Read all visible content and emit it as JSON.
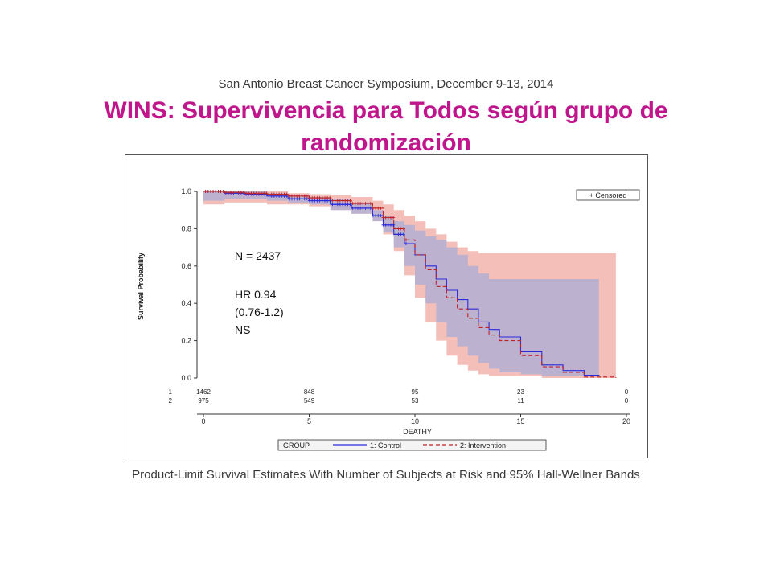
{
  "header": {
    "conference": "San Antonio Breast Cancer Symposium, December 9-13, 2014",
    "title": "WINS: Supervivencia para Todos según grupo de randomización"
  },
  "caption": "Product-Limit Survival Estimates With Number of Subjects at Risk and 95% Hall-Wellner Bands",
  "colors": {
    "control": "#2b2bd9",
    "intervention": "#c02020",
    "control_band": "#9aa9df",
    "intervention_band": "#efa9a0",
    "title": "#c0168c"
  },
  "chart_data": {
    "type": "line",
    "title": "",
    "xlabel": "DEATHY",
    "ylabel": "Survival Probability",
    "xlim": [
      0,
      20
    ],
    "ylim": [
      0,
      1
    ],
    "x_ticks": [
      "0",
      "5",
      "10",
      "15",
      "20"
    ],
    "y_ticks": [
      "0.0",
      "0.2",
      "0.4",
      "0.6",
      "0.8",
      "1.0"
    ],
    "grid": false,
    "legend_title": "GROUP",
    "legend_position": "bottom",
    "censored_label": "+ Censored",
    "annotation": [
      "N = 2437",
      "HR 0.94",
      "(0.76-1.2)",
      "NS"
    ],
    "series": [
      {
        "name": "1: Control",
        "x": [
          0,
          1,
          2,
          3,
          4,
          5,
          6,
          7,
          8,
          8.5,
          9,
          9.5,
          10,
          10.5,
          11,
          11.5,
          12,
          12.5,
          13,
          13.5,
          14,
          15,
          16,
          17,
          18,
          18.7
        ],
        "y": [
          1.0,
          0.99,
          0.985,
          0.975,
          0.96,
          0.95,
          0.93,
          0.91,
          0.87,
          0.82,
          0.77,
          0.72,
          0.66,
          0.6,
          0.53,
          0.47,
          0.42,
          0.37,
          0.3,
          0.26,
          0.22,
          0.14,
          0.07,
          0.04,
          0.015,
          0.01
        ],
        "band_upper": [
          1.0,
          1.0,
          1.0,
          0.99,
          0.98,
          0.97,
          0.96,
          0.94,
          0.9,
          0.87,
          0.84,
          0.82,
          0.79,
          0.76,
          0.74,
          0.7,
          0.66,
          0.6,
          0.56,
          0.53,
          0.53,
          0.53,
          0.53,
          0.53,
          0.53,
          0.53
        ],
        "band_lower": [
          0.95,
          0.96,
          0.96,
          0.95,
          0.94,
          0.93,
          0.9,
          0.88,
          0.84,
          0.78,
          0.7,
          0.6,
          0.5,
          0.4,
          0.3,
          0.22,
          0.17,
          0.12,
          0.08,
          0.05,
          0.03,
          0.02,
          0.01,
          0.01,
          0.01,
          0.01
        ]
      },
      {
        "name": "2: Intervention",
        "x": [
          0,
          1,
          2,
          3,
          4,
          5,
          6,
          7,
          8,
          8.5,
          9,
          9.5,
          10,
          10.5,
          11,
          11.5,
          12,
          12.5,
          13,
          13.5,
          14,
          15,
          16,
          17,
          18,
          19.5
        ],
        "y": [
          1.0,
          0.995,
          0.99,
          0.985,
          0.975,
          0.965,
          0.95,
          0.935,
          0.91,
          0.86,
          0.8,
          0.74,
          0.66,
          0.58,
          0.49,
          0.43,
          0.37,
          0.32,
          0.27,
          0.23,
          0.2,
          0.12,
          0.06,
          0.03,
          0.005,
          0.0
        ],
        "band_upper": [
          1.0,
          1.0,
          1.0,
          1.0,
          0.99,
          0.985,
          0.98,
          0.97,
          0.95,
          0.93,
          0.9,
          0.87,
          0.84,
          0.8,
          0.77,
          0.73,
          0.7,
          0.68,
          0.67,
          0.67,
          0.67,
          0.67,
          0.67,
          0.67,
          0.67,
          0.67
        ],
        "band_lower": [
          0.93,
          0.94,
          0.94,
          0.93,
          0.93,
          0.92,
          0.9,
          0.88,
          0.84,
          0.77,
          0.68,
          0.55,
          0.43,
          0.3,
          0.2,
          0.12,
          0.07,
          0.04,
          0.02,
          0.01,
          0.01,
          0.01,
          0.0,
          0.0,
          0.0,
          0.0
        ]
      }
    ],
    "at_risk": {
      "times": [
        0,
        5,
        10,
        15,
        20
      ],
      "rows": [
        {
          "label": "1",
          "values": [
            "1462",
            "848",
            "95",
            "23",
            "0"
          ]
        },
        {
          "label": "2",
          "values": [
            "975",
            "549",
            "53",
            "11",
            "0"
          ]
        }
      ]
    }
  }
}
